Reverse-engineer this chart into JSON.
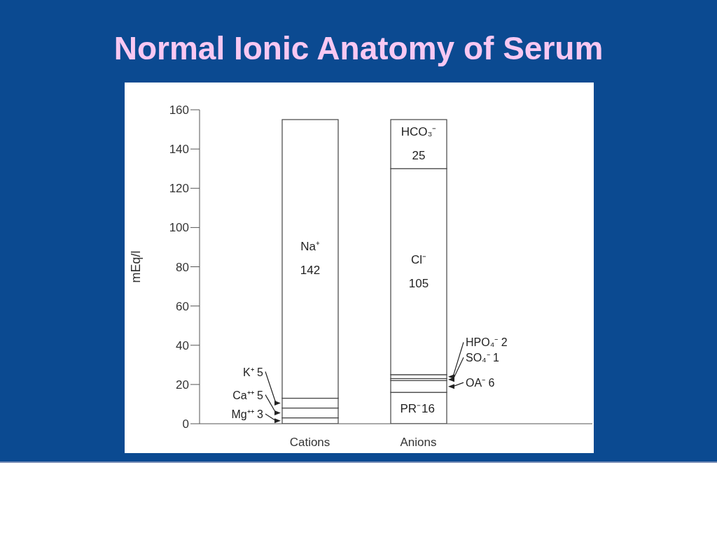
{
  "chart_data": {
    "type": "bar",
    "title": "Normal Ionic Anatomy of Serum",
    "ylabel": "mEq/l",
    "categories": [
      "Cations",
      "Anions"
    ],
    "stacked": true,
    "ylim": [
      0,
      160
    ],
    "yticks": [
      0,
      20,
      40,
      60,
      80,
      100,
      120,
      140,
      160
    ],
    "series": [
      {
        "name": "Mg⁺⁺ 3",
        "color": "#ffffff",
        "values": [
          3,
          null
        ],
        "value_labels": [
          null,
          null
        ]
      },
      {
        "name": "Ca⁺⁺ 5",
        "color": "#ffffff",
        "values": [
          5,
          null
        ],
        "value_labels": [
          null,
          null
        ]
      },
      {
        "name": "K⁺ 5",
        "color": "#ffffff",
        "values": [
          5,
          null
        ],
        "value_labels": [
          null,
          null
        ]
      },
      {
        "name": "Na⁺",
        "color": "#ffffff",
        "values": [
          142,
          null
        ],
        "value_labels": [
          "142",
          null
        ]
      },
      {
        "name": "PR⁻",
        "color": "#ffffff",
        "values": [
          null,
          16
        ],
        "value_labels": [
          null,
          "16"
        ]
      },
      {
        "name": "OA⁻ 6",
        "color": "#ffffff",
        "values": [
          null,
          6
        ],
        "value_labels": [
          null,
          null
        ]
      },
      {
        "name": "SO₄⁻ 1",
        "color": "#ffffff",
        "values": [
          null,
          1
        ],
        "value_labels": [
          null,
          null
        ]
      },
      {
        "name": "HPO₄⁻ 2",
        "color": "#ffffff",
        "values": [
          null,
          2
        ],
        "value_labels": [
          null,
          null
        ]
      },
      {
        "name": "Cl⁻",
        "color": "#ffffff",
        "values": [
          null,
          105
        ],
        "value_labels": [
          null,
          "105"
        ]
      },
      {
        "name": "HCO₃⁻",
        "color": "#ffffff",
        "values": [
          null,
          25
        ],
        "value_labels": [
          null,
          "25"
        ]
      }
    ]
  }
}
